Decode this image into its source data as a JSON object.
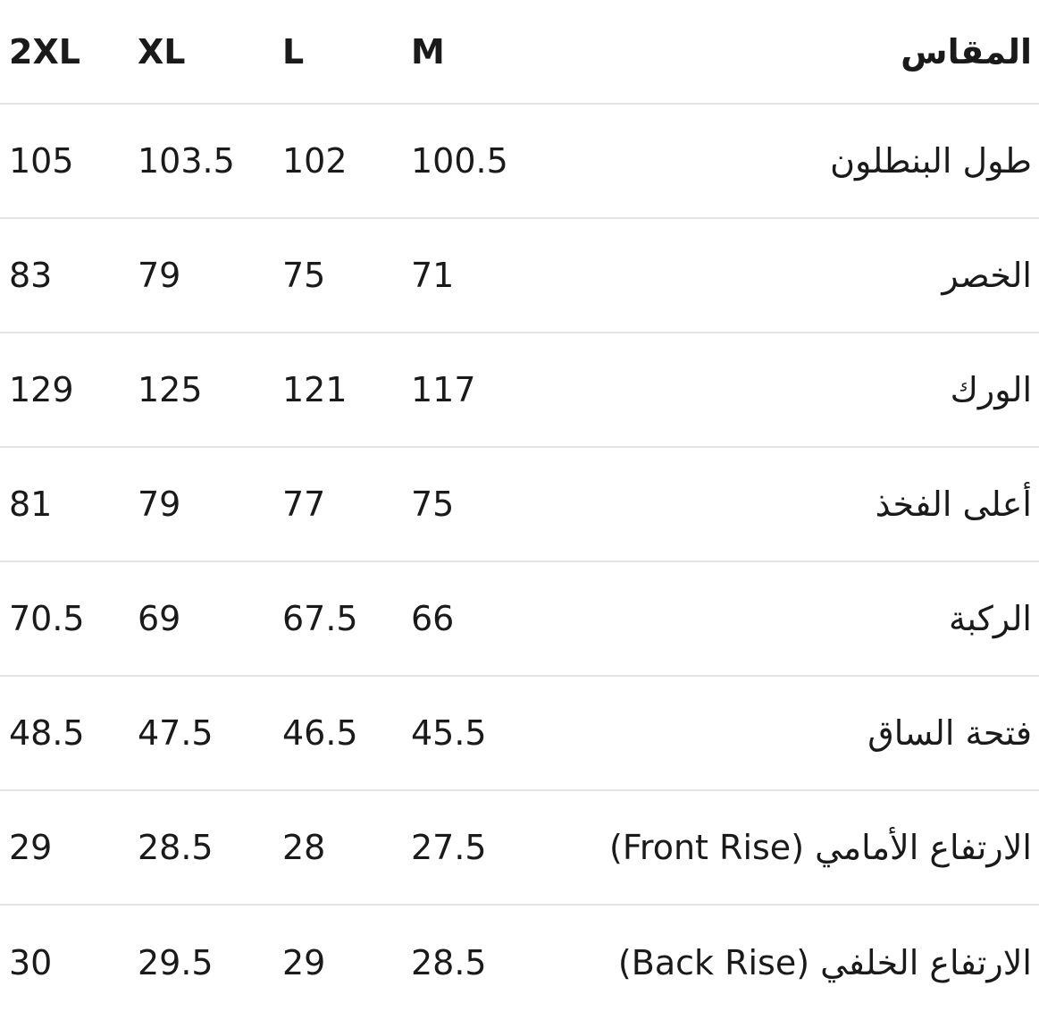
{
  "header": {
    "label": "المقاس",
    "sizes": [
      "M",
      "L",
      "XL",
      "2XL"
    ]
  },
  "rows": [
    {
      "label": "طول البنطلون",
      "M": "100.5",
      "L": "102",
      "XL": "103.5",
      "2XL": "105"
    },
    {
      "label": "الخصر",
      "M": "71",
      "L": "75",
      "XL": "79",
      "2XL": "83"
    },
    {
      "label": "الورك",
      "M": "117",
      "L": "121",
      "XL": "125",
      "2XL": "129"
    },
    {
      "label": "أعلى الفخذ",
      "M": "75",
      "L": "77",
      "XL": "79",
      "2XL": "81"
    },
    {
      "label": "الركبة",
      "M": "66",
      "L": "67.5",
      "XL": "69",
      "2XL": "70.5"
    },
    {
      "label": "فتحة الساق",
      "M": "45.5",
      "L": "46.5",
      "XL": "47.5",
      "2XL": "48.5"
    },
    {
      "label": "الارتفاع الأمامي (Front Rise)",
      "M": "27.5",
      "L": "28",
      "XL": "28.5",
      "2XL": "29"
    },
    {
      "label": "الارتفاع الخلفي (Back Rise)",
      "M": "28.5",
      "L": "29",
      "XL": "29.5",
      "2XL": "30"
    }
  ]
}
